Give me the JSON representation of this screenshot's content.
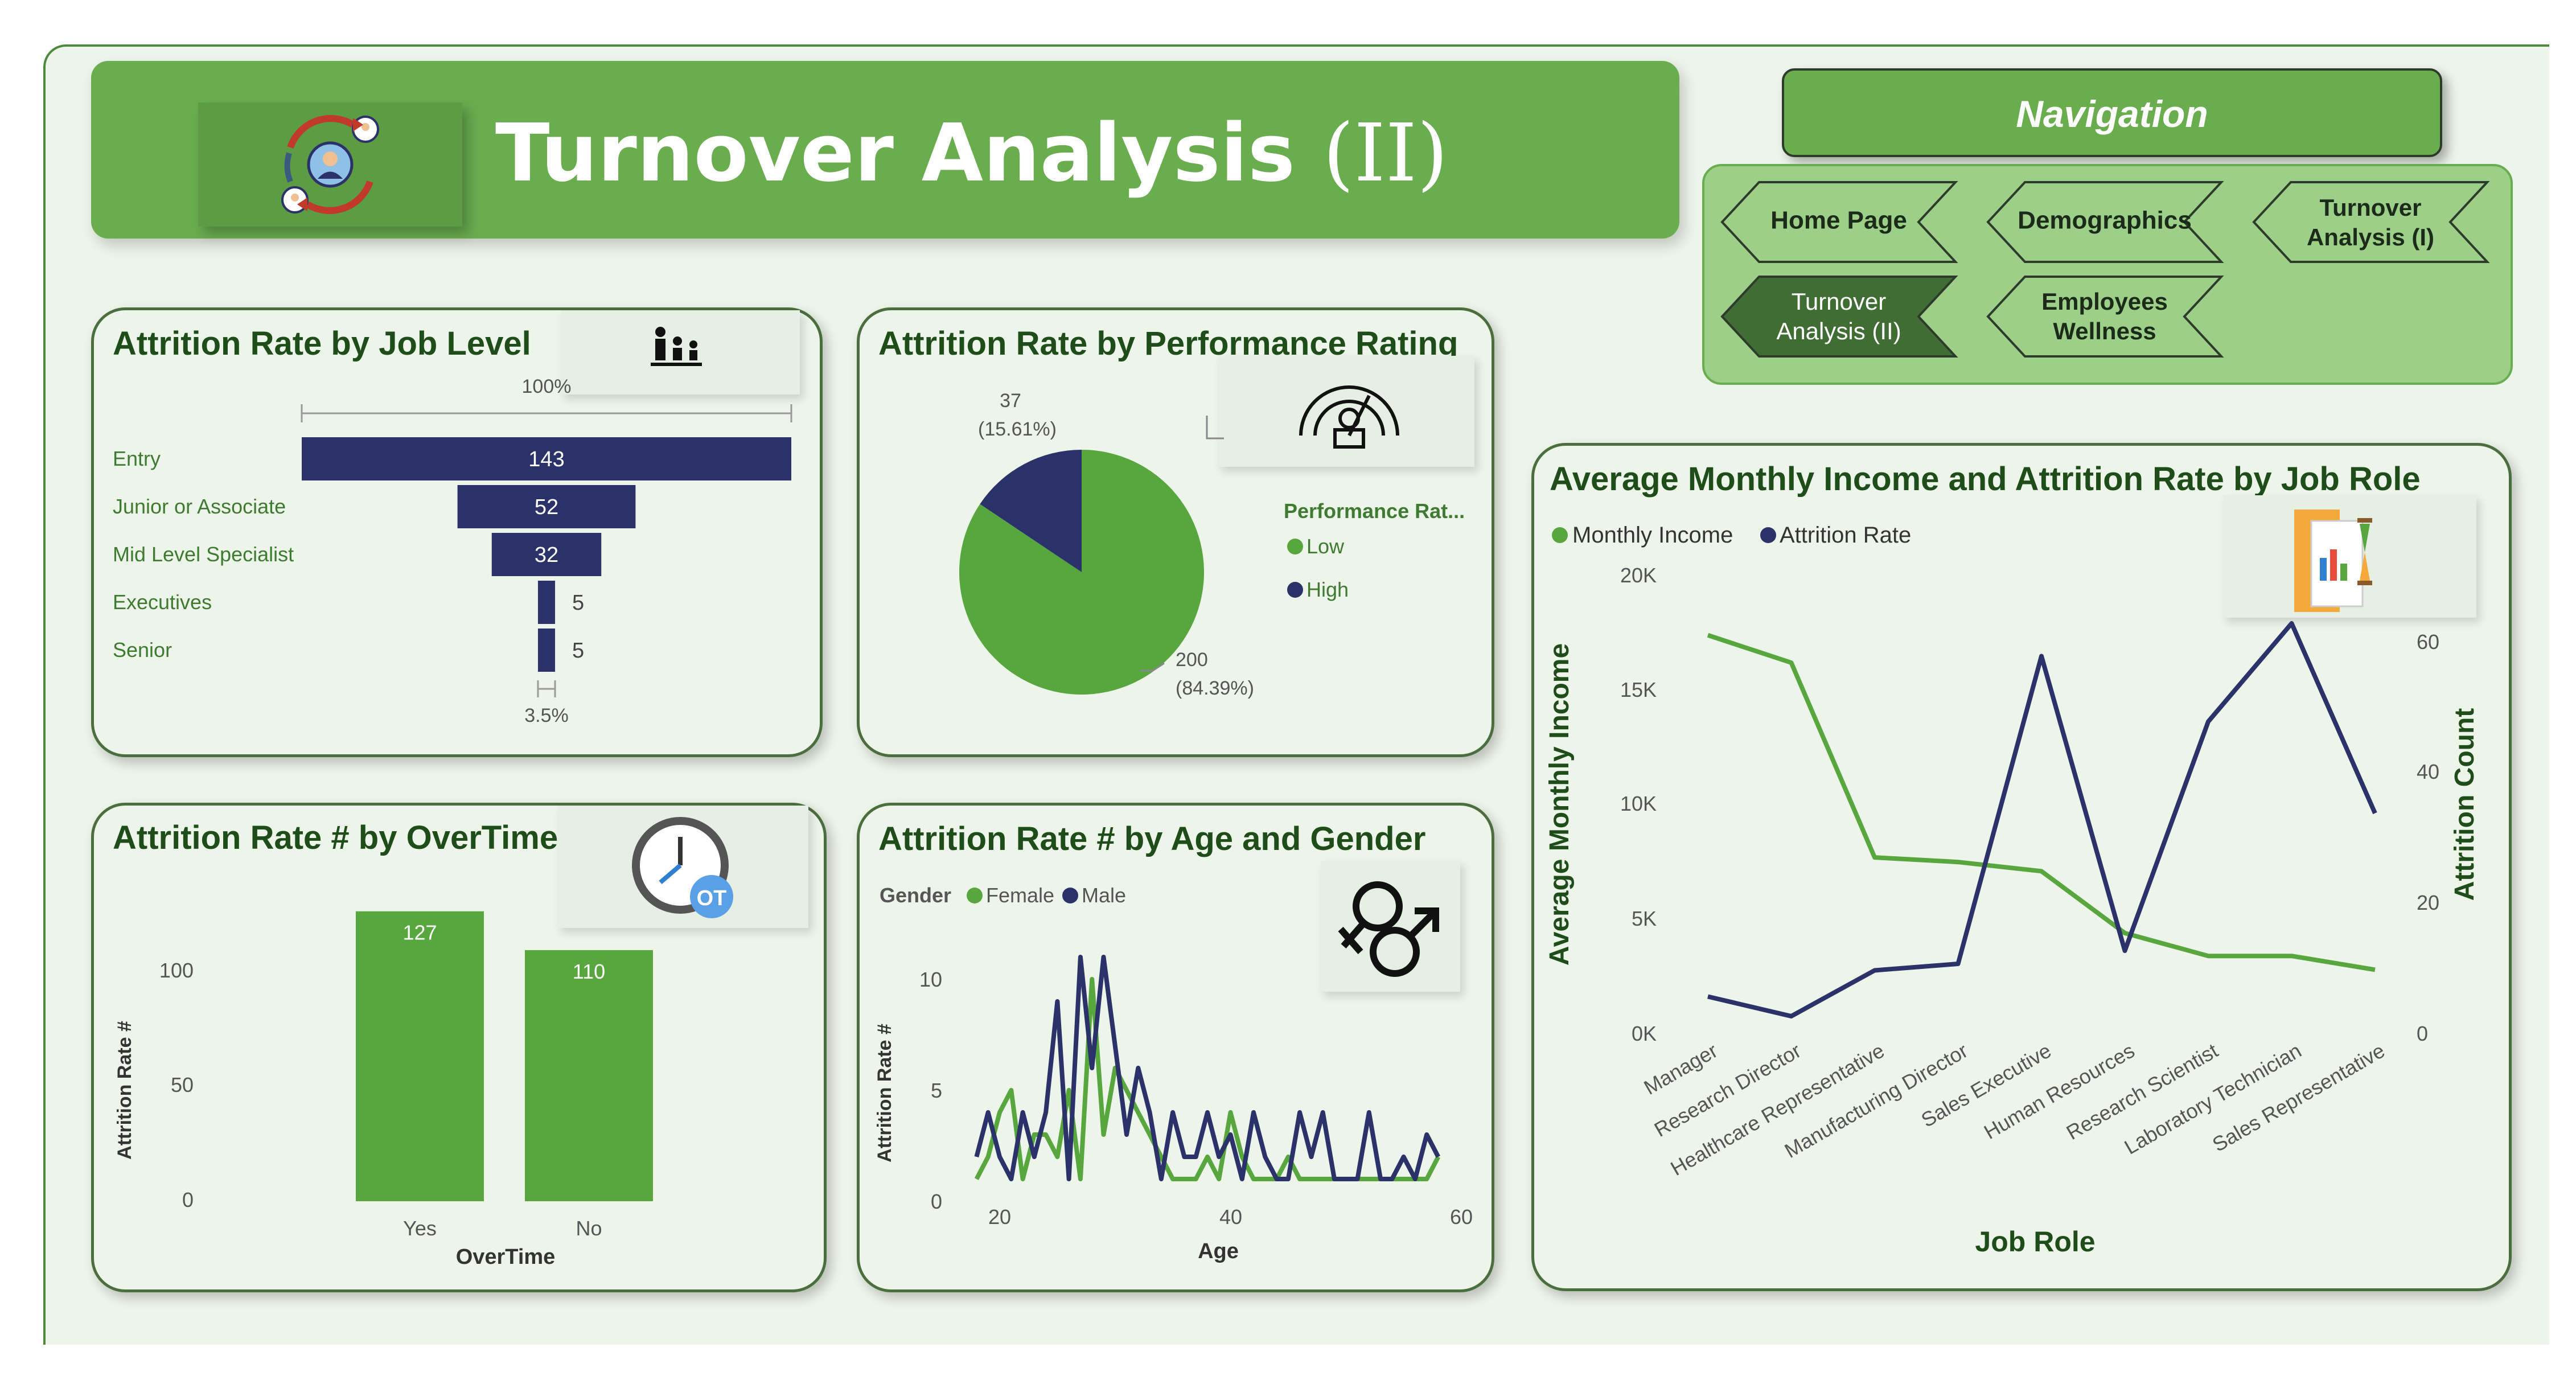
{
  "header": {
    "title": "Turnover Analysis",
    "title_roman": "(II)",
    "logo_icon": "employee-turnover-icon"
  },
  "navigation": {
    "title": "Navigation",
    "buttons": [
      {
        "line1": "Home Page",
        "line2": "",
        "active": false
      },
      {
        "line1": "Demographics",
        "line2": "",
        "active": false
      },
      {
        "line1": "Turnover",
        "line2": "Analysis (I)",
        "active": false
      },
      {
        "line1": "Turnover",
        "line2": "Analysis (II)",
        "active": true
      },
      {
        "line1": "Employees",
        "line2": "Wellness",
        "active": false
      }
    ]
  },
  "colors": {
    "green": "#58a63e",
    "navy": "#2b3169",
    "title_green": "#1e4d1a",
    "banner_green": "#6aad4f"
  },
  "job_level": {
    "title": "Attrition Rate by Job Level",
    "icon": "organization-hierarchy-icon",
    "top_label": "100%",
    "bottom_label": "3.5%",
    "chart_data": {
      "type": "bar",
      "categories": [
        "Entry",
        "Junior or Associate",
        "Mid Level Specialist",
        "Executives",
        "Senior"
      ],
      "values": [
        143,
        52,
        32,
        5,
        5
      ]
    }
  },
  "performance": {
    "title": "Attrition Rate by Performance Rating",
    "icon": "performance-gauge-icon",
    "legend_title": "Performance Rat...",
    "chart_data": {
      "type": "pie",
      "labels": [
        "Low",
        "High"
      ],
      "values": [
        200,
        37
      ],
      "percent_labels": [
        "(84.39%)",
        "(15.61%)"
      ],
      "value_labels": [
        "200",
        "37"
      ]
    }
  },
  "overtime": {
    "title": "Attrition Rate # by OverTime",
    "icon": "overtime-clock-icon",
    "xlabel": "OverTime",
    "ylabel": "Attrition Rate #",
    "chart_data": {
      "type": "bar",
      "categories": [
        "Yes",
        "No"
      ],
      "values": [
        127,
        110
      ],
      "yticks": [
        "100",
        "50",
        "0"
      ]
    }
  },
  "age_gender": {
    "title": "Attrition Rate # by Age and Gender",
    "icon": "gender-symbols-icon",
    "legend_title": "Gender",
    "xlabel": "Age",
    "ylabel": "Attrition Rate #",
    "chart_data": {
      "type": "line",
      "xticks": [
        "20",
        "40",
        "60"
      ],
      "yticks": [
        "10",
        "5",
        "0"
      ],
      "series": [
        {
          "name": "Female",
          "x": [
            18,
            19,
            20,
            21,
            22,
            23,
            24,
            25,
            26,
            27,
            28,
            29,
            30,
            31,
            32,
            33,
            34,
            35,
            36,
            37,
            38,
            39,
            40,
            41,
            42,
            43,
            44,
            45,
            46,
            47,
            48,
            49,
            50,
            51,
            52,
            53,
            54,
            55,
            56,
            57,
            58
          ],
          "values": [
            1,
            2,
            4,
            5,
            1,
            3,
            3,
            2,
            5,
            1,
            10,
            3,
            6,
            5,
            4,
            3,
            2,
            1,
            1,
            1,
            2,
            1,
            4,
            2,
            1,
            1,
            1,
            2,
            1,
            1,
            1,
            1,
            1,
            1,
            1,
            1,
            1,
            1,
            1,
            1,
            2
          ]
        },
        {
          "name": "Male",
          "x": [
            18,
            19,
            20,
            21,
            22,
            23,
            24,
            25,
            26,
            27,
            28,
            29,
            30,
            31,
            32,
            33,
            34,
            35,
            36,
            37,
            38,
            39,
            40,
            41,
            42,
            43,
            44,
            45,
            46,
            47,
            48,
            49,
            50,
            51,
            52,
            53,
            54,
            55,
            56,
            57,
            58
          ],
          "values": [
            2,
            4,
            2,
            1,
            4,
            2,
            4,
            9,
            1,
            11,
            6,
            11,
            7,
            3,
            6,
            4,
            1,
            4,
            2,
            2,
            4,
            2,
            3,
            1,
            4,
            2,
            1,
            1,
            4,
            2,
            4,
            1,
            1,
            1,
            4,
            1,
            1,
            2,
            1,
            3,
            2
          ]
        }
      ]
    }
  },
  "income": {
    "title": "Average Monthly Income and Attrition Rate by Job Role",
    "icon": "report-documents-icon",
    "xlabel": "Job Role",
    "ylabel_left": "Average Monthly Income",
    "ylabel_right": "Attrition Count",
    "chart_data": {
      "type": "line",
      "categories": [
        "Manager",
        "Research Director",
        "Healthcare Representative",
        "Manufacturing Director",
        "Sales Executive",
        "Human Resources",
        "Research Scientist",
        "Laboratory Technician",
        "Sales Representative"
      ],
      "yticks_left": [
        "20K",
        "15K",
        "10K",
        "5K",
        "0K"
      ],
      "yticks_right": [
        "60",
        "40",
        "20",
        "0"
      ],
      "series": [
        {
          "name": "Monthly Income",
          "axis": "left",
          "values": [
            17200,
            16000,
            7500,
            7300,
            6900,
            4200,
            3200,
            3200,
            2600
          ]
        },
        {
          "name": "Attrition Rate",
          "axis": "right",
          "values": [
            5,
            2,
            9,
            10,
            57,
            12,
            47,
            62,
            33
          ]
        }
      ]
    }
  }
}
